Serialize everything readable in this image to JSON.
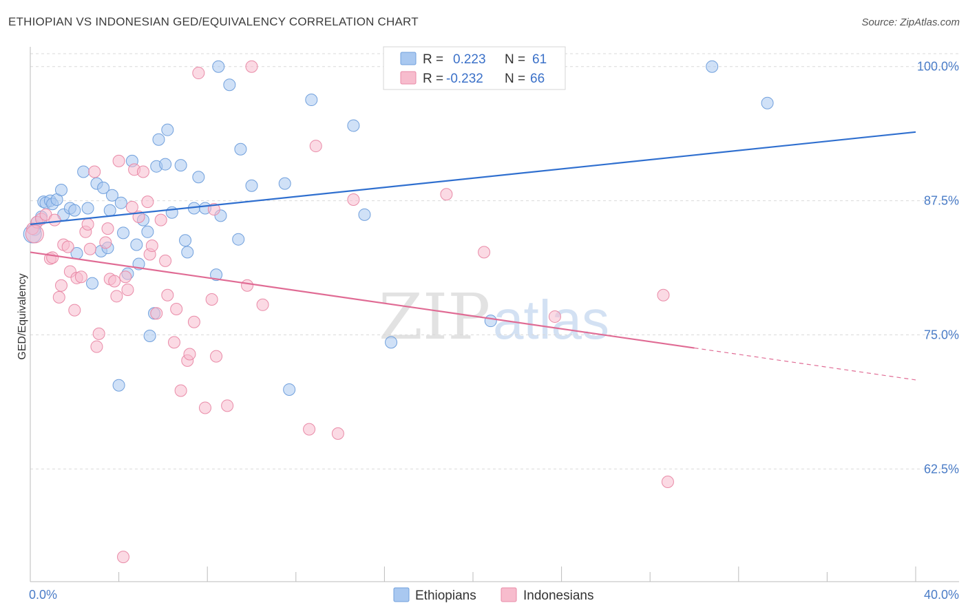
{
  "header": {
    "title": "ETHIOPIAN VS INDONESIAN GED/EQUIVALENCY CORRELATION CHART",
    "source": "Source: ZipAtlas.com"
  },
  "watermark": {
    "zip": "ZIP",
    "atlas": "atlas"
  },
  "legend_top": {
    "r_label": "R =",
    "n_label": "N =",
    "rows": [
      {
        "r": "0.223",
        "n": "61"
      },
      {
        "r": "-0.232",
        "n": "66"
      }
    ]
  },
  "legend_bottom": [
    "Ethiopians",
    "Indonesians"
  ],
  "colors": {
    "ethiopians_fill": "#a9c8f0",
    "ethiopians_stroke": "#6f9fdc",
    "ethiopians_line": "#2f6fcf",
    "indonesians_fill": "#f7bccd",
    "indonesians_stroke": "#e98aa7",
    "indonesians_line": "#e06b94",
    "grid": "#d9d9d9",
    "axis_label": "#4a7cc7"
  },
  "chart_data": {
    "type": "scatter",
    "title": "ETHIOPIAN VS INDONESIAN GED/EQUIVALENCY CORRELATION CHART",
    "xlabel": "",
    "ylabel": "GED/Equivalency",
    "xlim": [
      0,
      40
    ],
    "ylim": [
      52,
      101.2
    ],
    "x_tick_labels": [
      "0.0%",
      "40.0%"
    ],
    "y_ticks": [
      62.5,
      75.0,
      87.5,
      100.0
    ],
    "y_tick_labels": [
      "62.5%",
      "75.0%",
      "87.5%",
      "100.0%"
    ],
    "grid": true,
    "legend_position": "top-center",
    "series": [
      {
        "name": "Ethiopians",
        "r": 0.223,
        "n": 61,
        "trend": {
          "x0": 0,
          "y0": 85.3,
          "x1": 40,
          "y1": 93.9,
          "dashed_from": null
        },
        "points": [
          [
            0.2,
            84.8
          ],
          [
            0.3,
            85.5
          ],
          [
            0.5,
            86.0
          ],
          [
            0.6,
            87.4
          ],
          [
            0.7,
            87.3
          ],
          [
            0.9,
            87.5
          ],
          [
            1.0,
            87.2
          ],
          [
            1.2,
            87.6
          ],
          [
            1.4,
            88.5
          ],
          [
            1.5,
            86.2
          ],
          [
            1.8,
            86.8
          ],
          [
            2.0,
            86.6
          ],
          [
            2.1,
            82.6
          ],
          [
            2.4,
            90.2
          ],
          [
            2.6,
            86.8
          ],
          [
            2.8,
            79.8
          ],
          [
            3.0,
            89.1
          ],
          [
            3.2,
            82.8
          ],
          [
            3.3,
            88.7
          ],
          [
            3.5,
            83.1
          ],
          [
            3.6,
            86.6
          ],
          [
            3.7,
            88.0
          ],
          [
            4.0,
            70.3
          ],
          [
            4.1,
            87.3
          ],
          [
            4.2,
            84.5
          ],
          [
            4.4,
            80.7
          ],
          [
            4.6,
            91.2
          ],
          [
            4.8,
            83.4
          ],
          [
            4.9,
            81.6
          ],
          [
            5.1,
            85.7
          ],
          [
            5.3,
            84.6
          ],
          [
            5.4,
            74.9
          ],
          [
            5.6,
            77.0
          ],
          [
            5.7,
            90.7
          ],
          [
            5.8,
            93.2
          ],
          [
            6.1,
            90.9
          ],
          [
            6.2,
            94.1
          ],
          [
            6.4,
            86.4
          ],
          [
            6.8,
            90.8
          ],
          [
            7.0,
            83.8
          ],
          [
            7.1,
            82.7
          ],
          [
            7.4,
            86.8
          ],
          [
            7.6,
            89.7
          ],
          [
            7.9,
            86.8
          ],
          [
            8.4,
            80.6
          ],
          [
            8.5,
            100.0
          ],
          [
            8.6,
            86.1
          ],
          [
            9.0,
            98.3
          ],
          [
            9.4,
            83.9
          ],
          [
            9.5,
            92.3
          ],
          [
            10.0,
            88.9
          ],
          [
            11.5,
            89.1
          ],
          [
            11.7,
            69.9
          ],
          [
            12.7,
            96.9
          ],
          [
            14.6,
            94.5
          ],
          [
            15.1,
            86.2
          ],
          [
            16.3,
            74.3
          ],
          [
            20.8,
            76.3
          ],
          [
            30.8,
            100.0
          ],
          [
            33.3,
            96.6
          ],
          [
            0.1,
            84.4
          ]
        ]
      },
      {
        "name": "Indonesians",
        "r": -0.232,
        "n": 66,
        "trend": {
          "x0": 0,
          "y0": 82.7,
          "x1": 40,
          "y1": 70.8,
          "dashed_from": 30.0
        },
        "points": [
          [
            0.1,
            84.9
          ],
          [
            0.3,
            85.5
          ],
          [
            0.5,
            85.8
          ],
          [
            0.7,
            86.2
          ],
          [
            0.9,
            82.1
          ],
          [
            1.0,
            82.2
          ],
          [
            1.1,
            85.7
          ],
          [
            1.3,
            78.5
          ],
          [
            1.4,
            79.6
          ],
          [
            1.5,
            83.4
          ],
          [
            1.7,
            83.2
          ],
          [
            1.8,
            80.9
          ],
          [
            2.0,
            77.3
          ],
          [
            2.1,
            80.3
          ],
          [
            2.3,
            80.4
          ],
          [
            2.5,
            84.6
          ],
          [
            2.6,
            85.3
          ],
          [
            2.7,
            83.0
          ],
          [
            2.9,
            90.2
          ],
          [
            3.0,
            73.9
          ],
          [
            3.1,
            75.1
          ],
          [
            3.4,
            83.6
          ],
          [
            3.5,
            84.9
          ],
          [
            3.6,
            80.2
          ],
          [
            3.8,
            80.0
          ],
          [
            3.9,
            78.6
          ],
          [
            4.0,
            91.2
          ],
          [
            4.2,
            54.3
          ],
          [
            4.3,
            80.4
          ],
          [
            4.4,
            79.2
          ],
          [
            4.6,
            86.9
          ],
          [
            4.7,
            90.4
          ],
          [
            4.9,
            86.0
          ],
          [
            5.1,
            90.2
          ],
          [
            5.3,
            87.4
          ],
          [
            5.4,
            82.5
          ],
          [
            5.5,
            83.3
          ],
          [
            5.7,
            77.0
          ],
          [
            5.9,
            85.7
          ],
          [
            6.1,
            81.9
          ],
          [
            6.2,
            78.7
          ],
          [
            6.5,
            74.3
          ],
          [
            6.6,
            77.4
          ],
          [
            6.8,
            69.8
          ],
          [
            7.1,
            72.6
          ],
          [
            7.2,
            73.2
          ],
          [
            7.4,
            76.2
          ],
          [
            7.6,
            99.4
          ],
          [
            7.9,
            68.2
          ],
          [
            8.2,
            78.3
          ],
          [
            8.3,
            86.7
          ],
          [
            8.4,
            73.0
          ],
          [
            8.9,
            68.4
          ],
          [
            9.8,
            79.6
          ],
          [
            10.0,
            100.0
          ],
          [
            10.5,
            77.8
          ],
          [
            12.6,
            66.2
          ],
          [
            12.9,
            92.6
          ],
          [
            13.9,
            65.8
          ],
          [
            14.6,
            87.6
          ],
          [
            18.8,
            88.1
          ],
          [
            20.5,
            82.7
          ],
          [
            23.7,
            76.7
          ],
          [
            28.6,
            78.7
          ],
          [
            28.8,
            61.3
          ],
          [
            0.2,
            84.4
          ]
        ]
      }
    ]
  }
}
